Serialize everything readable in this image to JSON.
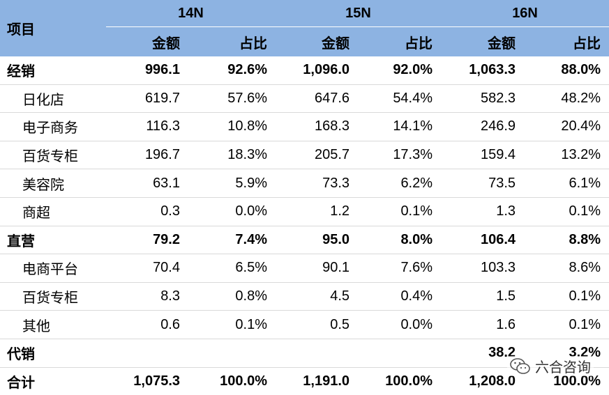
{
  "header": {
    "item_label": "项目",
    "years": [
      "14N",
      "15N",
      "16N"
    ],
    "amount_label": "金额",
    "share_label": "占比"
  },
  "rows": [
    {
      "name": "经销",
      "type": "bold",
      "v": [
        "996.1",
        "92.6%",
        "1,096.0",
        "92.0%",
        "1,063.3",
        "88.0%"
      ]
    },
    {
      "name": "日化店",
      "type": "sub",
      "v": [
        "619.7",
        "57.6%",
        "647.6",
        "54.4%",
        "582.3",
        "48.2%"
      ]
    },
    {
      "name": "电子商务",
      "type": "sub",
      "v": [
        "116.3",
        "10.8%",
        "168.3",
        "14.1%",
        "246.9",
        "20.4%"
      ]
    },
    {
      "name": "百货专柜",
      "type": "sub",
      "v": [
        "196.7",
        "18.3%",
        "205.7",
        "17.3%",
        "159.4",
        "13.2%"
      ]
    },
    {
      "name": "美容院",
      "type": "sub",
      "v": [
        "63.1",
        "5.9%",
        "73.3",
        "6.2%",
        "73.5",
        "6.1%"
      ]
    },
    {
      "name": "商超",
      "type": "sub",
      "v": [
        "0.3",
        "0.0%",
        "1.2",
        "0.1%",
        "1.3",
        "0.1%"
      ]
    },
    {
      "name": "直营",
      "type": "bold",
      "v": [
        "79.2",
        "7.4%",
        "95.0",
        "8.0%",
        "106.4",
        "8.8%"
      ]
    },
    {
      "name": "电商平台",
      "type": "sub",
      "v": [
        "70.4",
        "6.5%",
        "90.1",
        "7.6%",
        "103.3",
        "8.6%"
      ]
    },
    {
      "name": "百货专柜",
      "type": "sub",
      "v": [
        "8.3",
        "0.8%",
        "4.5",
        "0.4%",
        "1.5",
        "0.1%"
      ]
    },
    {
      "name": "其他",
      "type": "sub",
      "v": [
        "0.6",
        "0.1%",
        "0.5",
        "0.0%",
        "1.6",
        "0.1%"
      ]
    },
    {
      "name": "代销",
      "type": "bold",
      "v": [
        "",
        "",
        "",
        "",
        "38.2",
        "3.2%"
      ]
    },
    {
      "name": "合计",
      "type": "bold",
      "v": [
        "1,075.3",
        "100.0%",
        "1,191.0",
        "100.0%",
        "1,208.0",
        "100.0%"
      ]
    }
  ],
  "watermark": {
    "text": "六合咨询",
    "icon": "wechat-icon"
  }
}
